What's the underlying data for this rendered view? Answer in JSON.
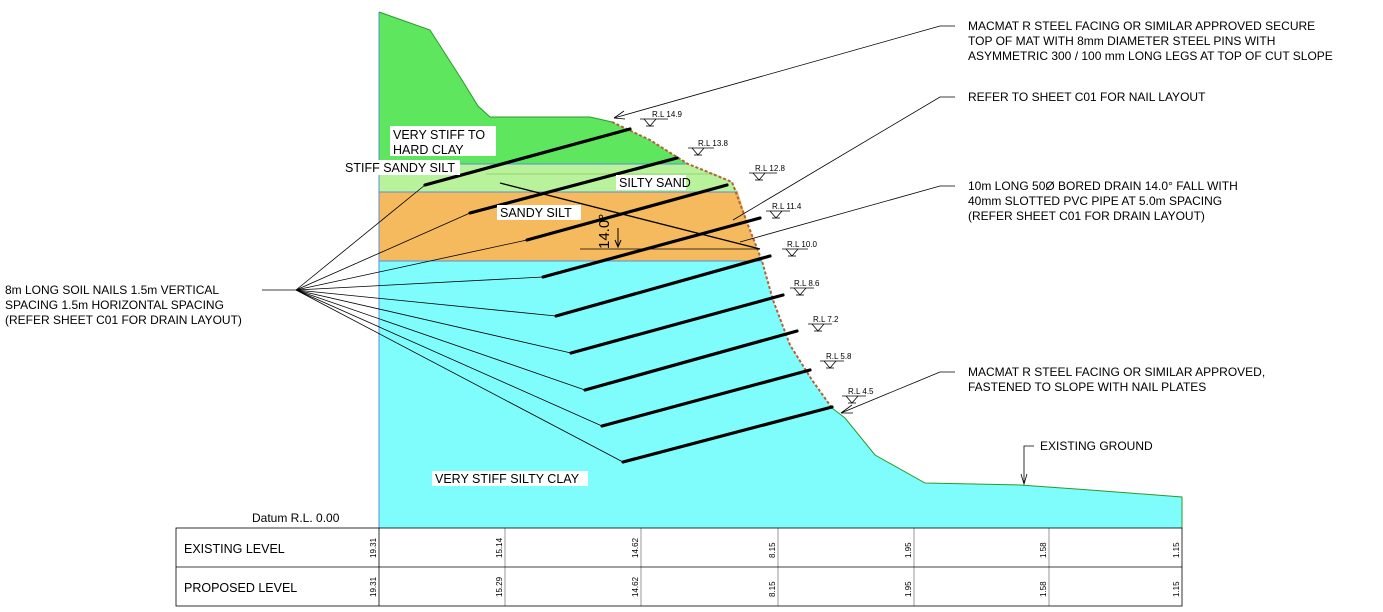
{
  "layers": [
    {
      "name": "VERY STIFF TO HARD CLAY",
      "lines": [
        "VERY STIFF TO",
        "HARD CLAY"
      ],
      "color": "#5fe65f"
    },
    {
      "name": "STIFF SANDY SILT",
      "lines": [
        "STIFF SANDY SILT"
      ],
      "color": "#b8f29a"
    },
    {
      "name": "SILTY SAND",
      "lines": [
        "SILTY SAND"
      ],
      "color": "#c8f59a"
    },
    {
      "name": "SANDY SILT",
      "lines": [
        "SANDY SILT"
      ],
      "color": "#f5b95e"
    },
    {
      "name": "VERY STIFF SILTY CLAY",
      "lines": [
        "VERY STIFF SILTY CLAY"
      ],
      "color": "#7ffdfd"
    }
  ],
  "levels": [
    "R.L 14.9",
    "R.L 13.8",
    "R.L 12.8",
    "R.L 11.4",
    "R.L 10.0",
    "R.L 8.6",
    "R.L 7.2",
    "R.L 5.8",
    "R.L 4.5"
  ],
  "drain_angle": "14.0°",
  "callouts": {
    "macmat_top": [
      "MACMAT R STEEL FACING OR SIMILAR APPROVED SECURE",
      "TOP OF MAT WITH 8mm DIAMETER STEEL PINS WITH",
      "ASYMMETRIC 300 / 100 mm LONG LEGS AT TOP OF CUT SLOPE"
    ],
    "nail_layout": [
      "REFER TO SHEET C01 FOR NAIL LAYOUT"
    ],
    "bored_drain": [
      "10m LONG 50Ø BORED DRAIN 14.0° FALL WITH",
      "40mm SLOTTED PVC PIPE AT 5.0m SPACING",
      "(REFER SHEET C01 FOR DRAIN LAYOUT)"
    ],
    "soil_nails": [
      "8m LONG SOIL NAILS 1.5m VERTICAL",
      "SPACING 1.5m HORIZONTAL SPACING",
      "(REFER SHEET C01 FOR DRAIN LAYOUT)"
    ],
    "macmat_bottom": [
      "MACMAT R STEEL FACING OR SIMILAR APPROVED,",
      "FASTENED TO SLOPE WITH NAIL PLATES"
    ],
    "existing_ground": [
      "EXISTING GROUND"
    ]
  },
  "datum": "Datum R.L. 0.00",
  "table": {
    "rows": [
      {
        "label": "EXISTING LEVEL",
        "values": [
          "19.31",
          "15.14",
          "14.62",
          "8.15",
          "1.95",
          "1.58",
          "1.15"
        ]
      },
      {
        "label": "PROPOSED LEVEL",
        "values": [
          "19.31",
          "15.29",
          "14.62",
          "8.15",
          "1.95",
          "1.58",
          "1.15"
        ]
      }
    ]
  }
}
